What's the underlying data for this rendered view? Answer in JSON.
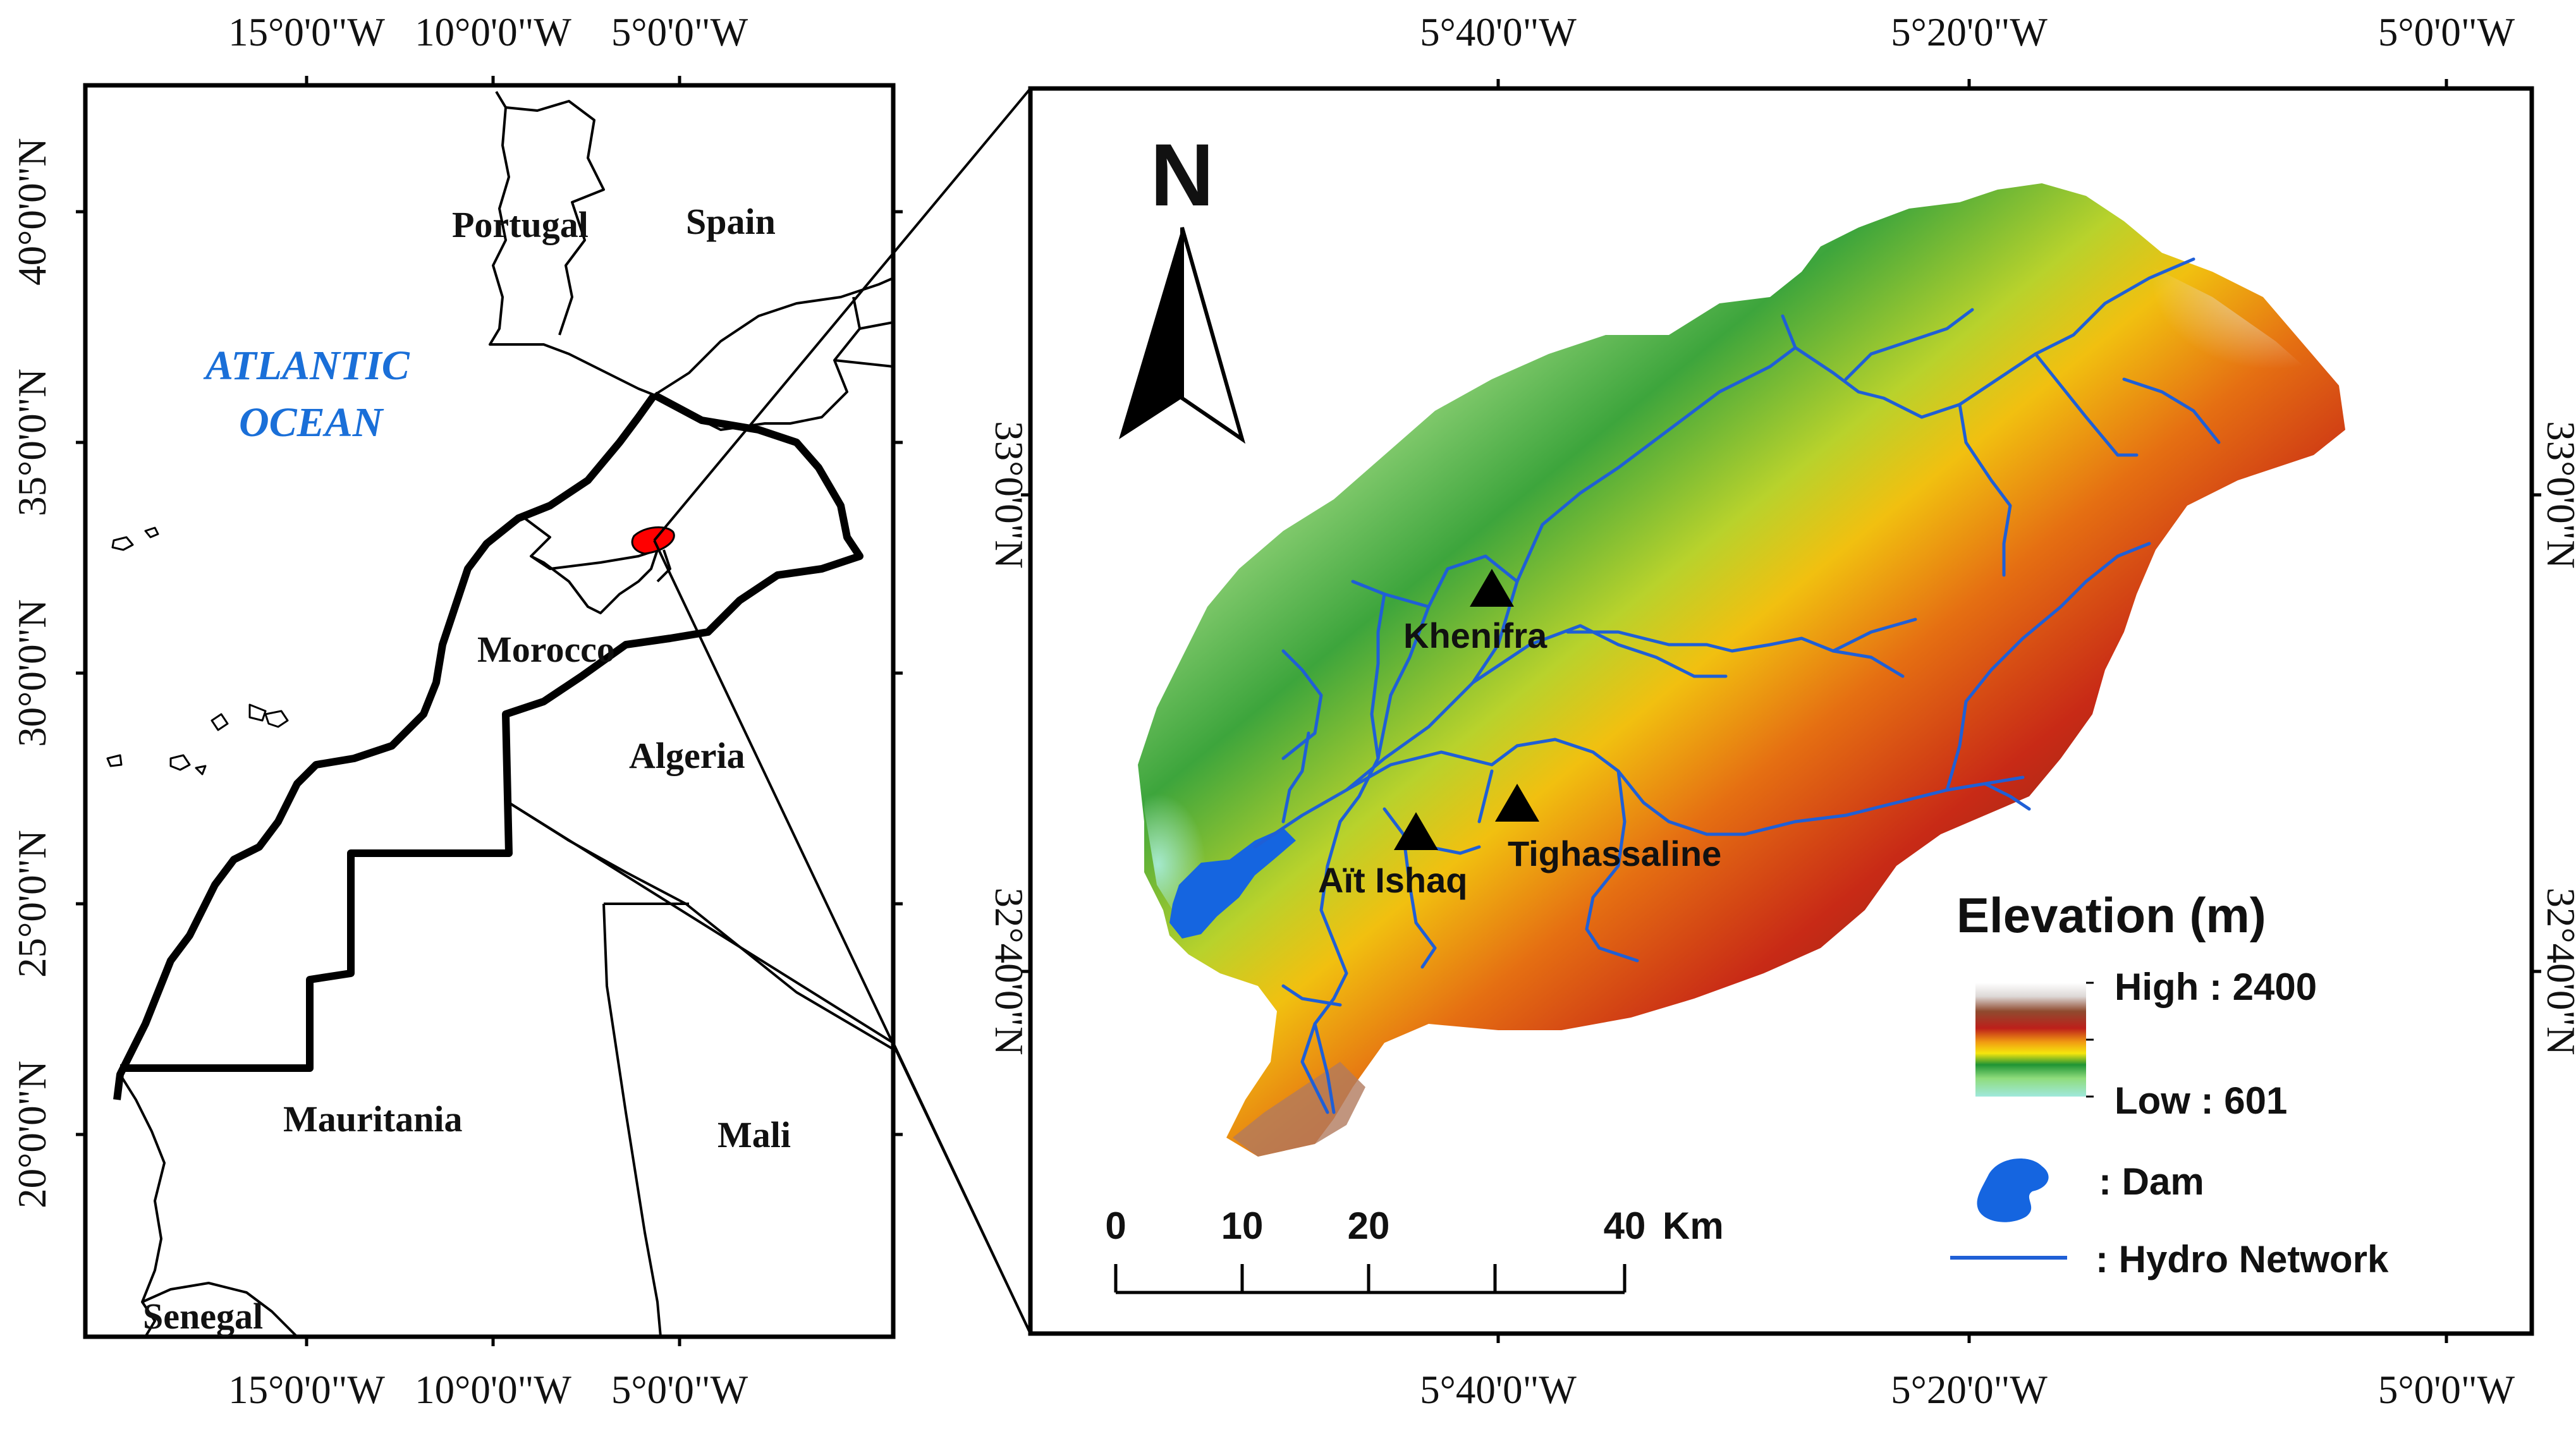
{
  "overview_map": {
    "top_ticks": [
      "15°0'0\"W",
      "10°0'0\"W",
      "5°0'0\"W"
    ],
    "bottom_ticks": [
      "15°0'0\"W",
      "10°0'0\"W",
      "5°0'0\"W"
    ],
    "left_ticks": [
      "40°0'0\"N",
      "35°0'0\"N",
      "30°0'0\"N",
      "25°0'0\"N",
      "20°0'0\"N"
    ],
    "countries": {
      "portugal": "Portugal",
      "spain": "Spain",
      "morocco": "Morocco",
      "algeria": "Algeria",
      "mauritania": "Mauritania",
      "mali": "Mali",
      "senegal": "Senegal"
    },
    "ocean_line1": "ATLANTIC",
    "ocean_line2": "OCEAN"
  },
  "detail_map": {
    "top_ticks": [
      "5°40'0\"W",
      "5°20'0\"W",
      "5°0'0\"W"
    ],
    "bottom_ticks": [
      "5°40'0\"W",
      "5°20'0\"W",
      "5°0'0\"W"
    ],
    "left_ticks": [
      "33°0'0\"N",
      "32°40'0\"N"
    ],
    "right_ticks": [
      "33°0'0\"N",
      "32°40'0\"N"
    ],
    "north_label": "N",
    "towns": [
      "Khenifra",
      "Tighassaline",
      "Aït Ishaq"
    ]
  },
  "legend": {
    "title": "Elevation (m)",
    "high": "High : 2400",
    "low": "Low : 601",
    "dam": ": Dam",
    "hydro": ": Hydro Network",
    "colors": {
      "dam": "#1565e0",
      "river": "#1f5fd6"
    }
  },
  "scale_bar": {
    "ticks": [
      "0",
      "10",
      "20",
      "40"
    ],
    "unit": "Km"
  }
}
